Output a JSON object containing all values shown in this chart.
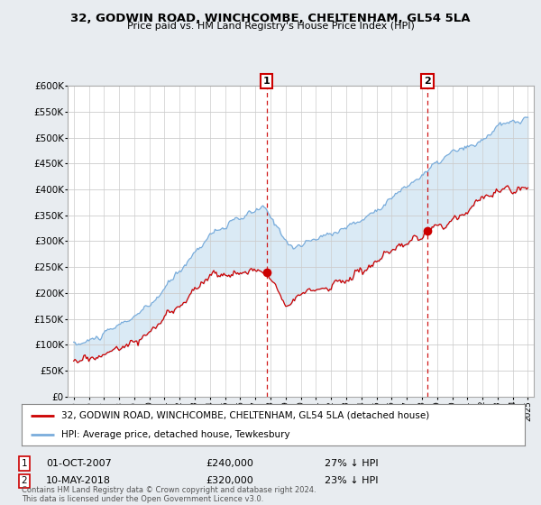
{
  "title": "32, GODWIN ROAD, WINCHCOMBE, CHELTENHAM, GL54 5LA",
  "subtitle": "Price paid vs. HM Land Registry's House Price Index (HPI)",
  "ylim": [
    0,
    600000
  ],
  "yticks": [
    0,
    50000,
    100000,
    150000,
    200000,
    250000,
    300000,
    350000,
    400000,
    450000,
    500000,
    550000,
    600000
  ],
  "ytick_labels": [
    "£0",
    "£50K",
    "£100K",
    "£150K",
    "£200K",
    "£250K",
    "£300K",
    "£350K",
    "£400K",
    "£450K",
    "£500K",
    "£550K",
    "£600K"
  ],
  "hpi_color": "#7aaddc",
  "price_color": "#cc0000",
  "fill_color": "#daeaf5",
  "marker1_year": 2007.75,
  "marker2_year": 2018.37,
  "marker1_price": 240000,
  "marker2_price": 320000,
  "legend_line1": "32, GODWIN ROAD, WINCHCOMBE, CHELTENHAM, GL54 5LA (detached house)",
  "legend_line2": "HPI: Average price, detached house, Tewkesbury",
  "footer": "Contains HM Land Registry data © Crown copyright and database right 2024.\nThis data is licensed under the Open Government Licence v3.0.",
  "bg_color": "#ffffff",
  "plot_bg_color": "#ffffff",
  "grid_color": "#cccccc",
  "outer_bg": "#e8ecf0"
}
